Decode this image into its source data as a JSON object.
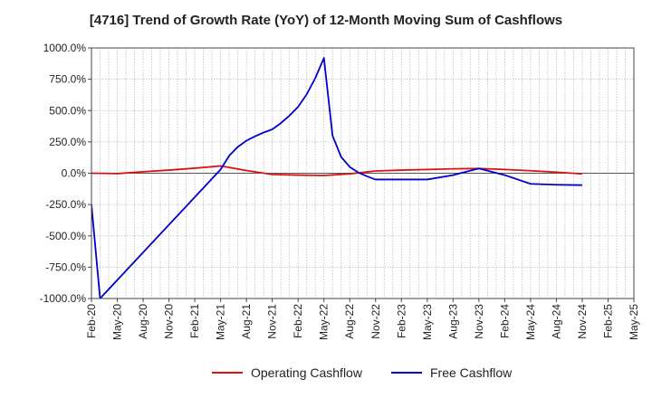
{
  "chart_data": {
    "type": "line",
    "title": "[4716]  Trend of Growth Rate (YoY) of 12-Month Moving Sum of Cashflows",
    "xlabel": "",
    "ylabel": "",
    "ylim": [
      -1000,
      1000
    ],
    "y_ticks": [
      1000,
      750,
      500,
      250,
      0,
      -250,
      -500,
      -750,
      -1000
    ],
    "y_tick_labels": [
      "1000.0%",
      "750.0%",
      "500.0%",
      "250.0%",
      "0.0%",
      "-250.0%",
      "-500.0%",
      "-750.0%",
      "-1000.0%"
    ],
    "x_tick_labels": [
      "Feb-20",
      "May-20",
      "Aug-20",
      "Nov-20",
      "Feb-21",
      "May-21",
      "Aug-21",
      "Nov-21",
      "Feb-22",
      "May-22",
      "Aug-22",
      "Nov-22",
      "Feb-23",
      "May-23",
      "Aug-23",
      "Nov-23",
      "Feb-24",
      "May-24",
      "Aug-24",
      "Nov-24",
      "Feb-25",
      "May-25"
    ],
    "grid": true,
    "legend_position": "bottom-center",
    "series": [
      {
        "name": "Operating Cashflow",
        "color": "#dd1111",
        "points": [
          [
            "Feb-20",
            0
          ],
          [
            "May-20",
            -3
          ],
          [
            "Aug-20",
            12
          ],
          [
            "Nov-20",
            25
          ],
          [
            "Feb-21",
            40
          ],
          [
            "May-21",
            58
          ],
          [
            "Aug-21",
            22
          ],
          [
            "Nov-21",
            -10
          ],
          [
            "Feb-22",
            -15
          ],
          [
            "May-22",
            -18
          ],
          [
            "Aug-22",
            -5
          ],
          [
            "Nov-22",
            18
          ],
          [
            "Feb-23",
            25
          ],
          [
            "May-23",
            30
          ],
          [
            "Aug-23",
            35
          ],
          [
            "Nov-23",
            38
          ],
          [
            "Feb-24",
            30
          ],
          [
            "May-24",
            20
          ],
          [
            "Aug-24",
            8
          ],
          [
            "Nov-24",
            -5
          ]
        ]
      },
      {
        "name": "Free Cashflow",
        "color": "#0000cc",
        "points": [
          [
            "Feb-20",
            -250
          ],
          [
            "Mar-20",
            -1000
          ],
          [
            "May-21",
            30
          ],
          [
            "Jun-21",
            140
          ],
          [
            "Jul-21",
            210
          ],
          [
            "Aug-21",
            260
          ],
          [
            "Sep-21",
            295
          ],
          [
            "Oct-21",
            325
          ],
          [
            "Nov-21",
            350
          ],
          [
            "Dec-21",
            400
          ],
          [
            "Jan-22",
            460
          ],
          [
            "Feb-22",
            530
          ],
          [
            "Mar-22",
            630
          ],
          [
            "Apr-22",
            760
          ],
          [
            "May-22",
            920
          ],
          [
            "Jun-22",
            300
          ],
          [
            "Jul-22",
            130
          ],
          [
            "Aug-22",
            50
          ],
          [
            "Sep-22",
            5
          ],
          [
            "Oct-22",
            -25
          ],
          [
            "Nov-22",
            -50
          ],
          [
            "Feb-23",
            -50
          ],
          [
            "May-23",
            -50
          ],
          [
            "Aug-23",
            -15
          ],
          [
            "Nov-23",
            38
          ],
          [
            "Feb-24",
            -15
          ],
          [
            "May-24",
            -85
          ],
          [
            "Aug-24",
            -92
          ],
          [
            "Nov-24",
            -95
          ]
        ]
      }
    ]
  }
}
